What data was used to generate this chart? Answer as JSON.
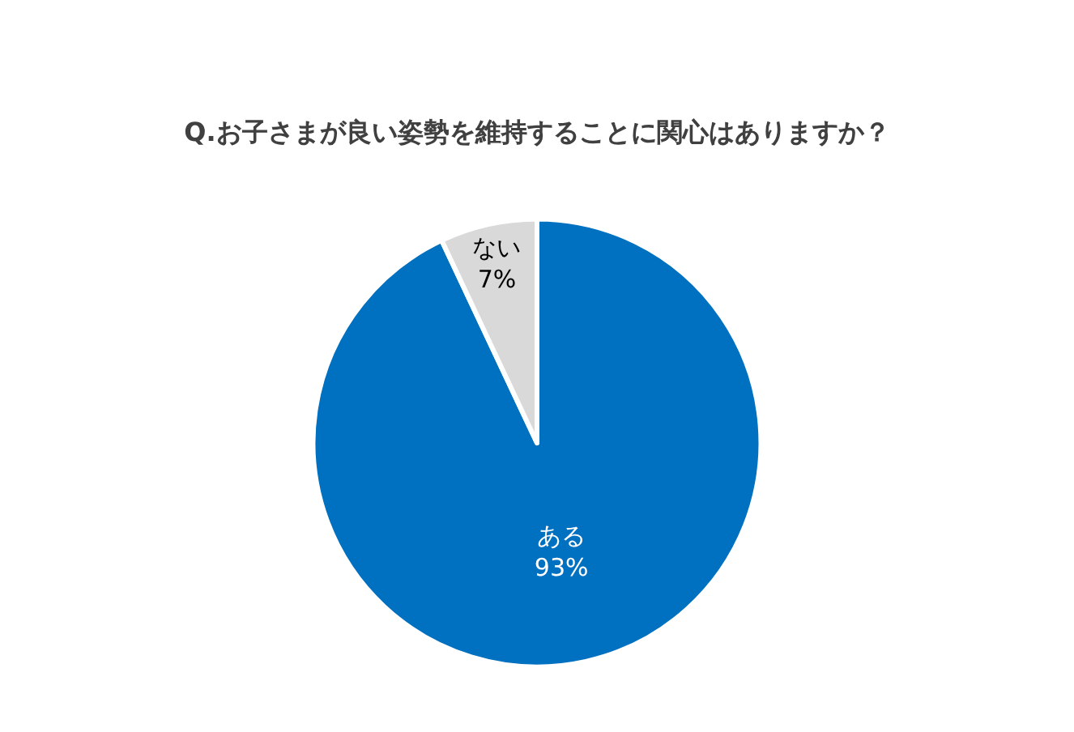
{
  "chart_data": {
    "type": "pie",
    "title": "Q.お子さまが良い姿勢を維持することに関心はありますか？",
    "categories": [
      "ある",
      "ない"
    ],
    "values": [
      93,
      7
    ],
    "colors": [
      "#0070c0",
      "#d9d9d9"
    ],
    "value_labels": [
      "93%",
      "7%"
    ],
    "legend": false
  }
}
